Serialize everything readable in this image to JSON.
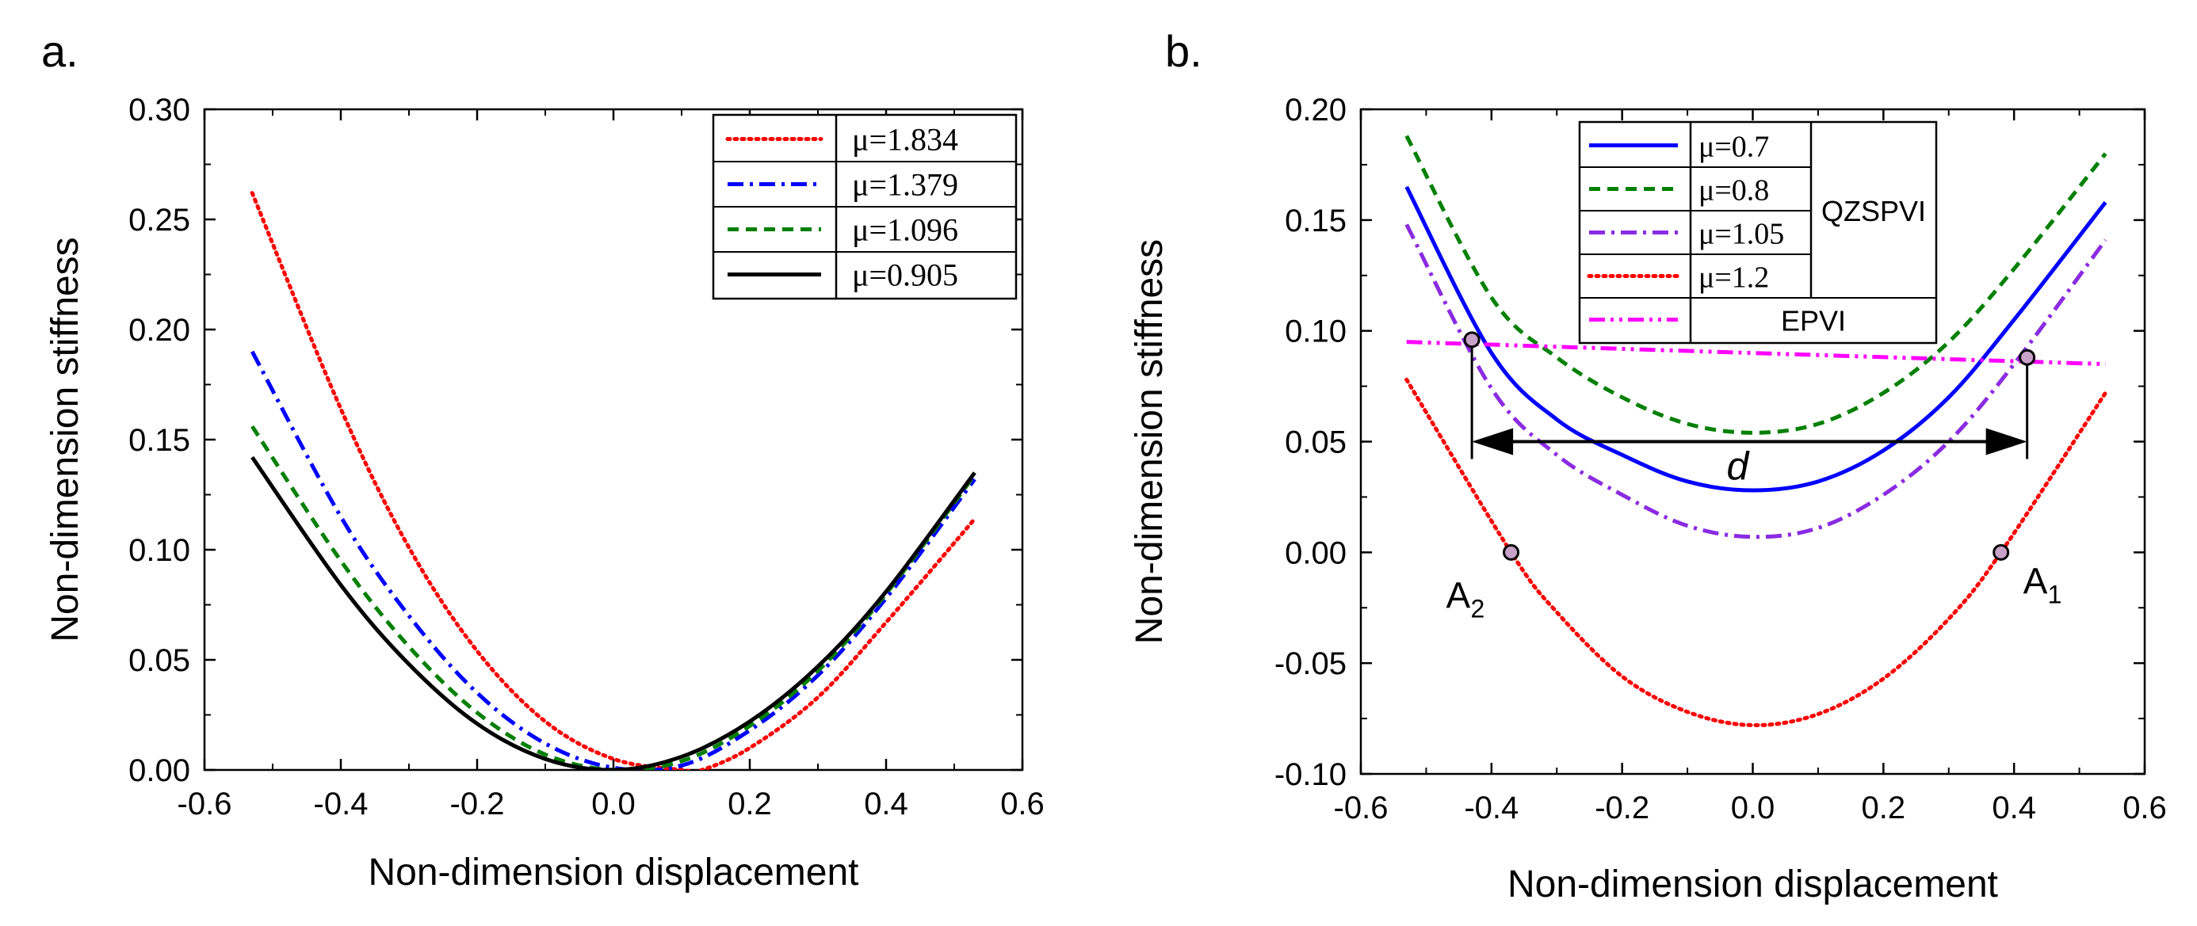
{
  "chart_data": [
    {
      "type": "line",
      "panel_label": "a.",
      "xlabel": "Non-dimension displacement",
      "ylabel": "Non-dimension stiffness",
      "xlim": [
        -0.6,
        0.6
      ],
      "ylim": [
        0.0,
        0.3
      ],
      "xticks": [
        "-0.6",
        "-0.4",
        "-0.2",
        "0.0",
        "0.2",
        "0.4",
        "0.6"
      ],
      "yticks": [
        "0.00",
        "0.05",
        "0.10",
        "0.15",
        "0.20",
        "0.25",
        "0.30"
      ],
      "grid": false,
      "legend_position": "top-right",
      "series": [
        {
          "name": "μ=1.834",
          "color": "#ff0000",
          "dash": "dotted",
          "x": [
            -0.53,
            -0.4,
            -0.3,
            -0.2,
            -0.1,
            0.0,
            0.1,
            0.13,
            0.2,
            0.3,
            0.4,
            0.53
          ],
          "y": [
            0.262,
            0.164,
            0.101,
            0.054,
            0.022,
            0.005,
            0.0,
            0.0,
            0.01,
            0.033,
            0.067,
            0.114
          ]
        },
        {
          "name": "μ=1.379",
          "color": "#0000ff",
          "dash": "dash-dot",
          "x": [
            -0.53,
            -0.4,
            -0.3,
            -0.2,
            -0.1,
            0.0,
            0.1,
            0.2,
            0.3,
            0.4,
            0.53
          ],
          "y": [
            0.19,
            0.115,
            0.07,
            0.035,
            0.012,
            0.001,
            0.002,
            0.018,
            0.043,
            0.078,
            0.132
          ]
        },
        {
          "name": "μ=1.096",
          "color": "#008000",
          "dash": "dashed",
          "x": [
            -0.53,
            -0.4,
            -0.3,
            -0.2,
            -0.1,
            0.0,
            0.1,
            0.2,
            0.3,
            0.4,
            0.53
          ],
          "y": [
            0.156,
            0.095,
            0.056,
            0.026,
            0.007,
            0.0,
            0.004,
            0.02,
            0.045,
            0.08,
            0.134
          ]
        },
        {
          "name": "μ=0.905",
          "color": "#000000",
          "dash": "solid",
          "x": [
            -0.53,
            -0.4,
            -0.3,
            -0.2,
            -0.1,
            0.0,
            0.1,
            0.2,
            0.3,
            0.4,
            0.53
          ],
          "y": [
            0.142,
            0.084,
            0.048,
            0.021,
            0.005,
            0.0,
            0.006,
            0.022,
            0.047,
            0.081,
            0.135
          ]
        }
      ]
    },
    {
      "type": "line",
      "panel_label": "b.",
      "xlabel": "Non-dimension displacement",
      "ylabel": "Non-dimension stiffness",
      "xlim": [
        -0.6,
        0.6
      ],
      "ylim": [
        -0.1,
        0.2
      ],
      "xticks": [
        "-0.6",
        "-0.4",
        "-0.2",
        "0.0",
        "0.2",
        "0.4",
        "0.6"
      ],
      "yticks": [
        "-0.10",
        "-0.05",
        "0.00",
        "0.05",
        "0.10",
        "0.15",
        "0.20"
      ],
      "grid": false,
      "legend_position": "top-center",
      "legend_groups": [
        "QZSPVI",
        "EPVI"
      ],
      "series": [
        {
          "name": "μ=0.7",
          "color": "#0000ff",
          "dash": "solid",
          "x": [
            -0.53,
            -0.4,
            -0.3,
            -0.2,
            -0.1,
            0.0,
            0.1,
            0.2,
            0.3,
            0.4,
            0.54
          ],
          "y": [
            0.165,
            0.09,
            0.06,
            0.044,
            0.032,
            0.028,
            0.032,
            0.046,
            0.07,
            0.105,
            0.158
          ]
        },
        {
          "name": "μ=0.8",
          "color": "#008000",
          "dash": "dashed",
          "x": [
            -0.53,
            -0.4,
            -0.3,
            -0.2,
            -0.1,
            0.0,
            0.1,
            0.2,
            0.3,
            0.4,
            0.54
          ],
          "y": [
            0.188,
            0.115,
            0.088,
            0.07,
            0.058,
            0.054,
            0.058,
            0.072,
            0.095,
            0.128,
            0.18
          ]
        },
        {
          "name": "μ=1.05",
          "color": "#8a2be2",
          "dash": "dash-dot",
          "x": [
            -0.53,
            -0.4,
            -0.3,
            -0.2,
            -0.1,
            0.0,
            0.1,
            0.2,
            0.3,
            0.4,
            0.54
          ],
          "y": [
            0.148,
            0.074,
            0.044,
            0.026,
            0.012,
            0.007,
            0.011,
            0.026,
            0.05,
            0.085,
            0.141
          ]
        },
        {
          "name": "μ=1.2",
          "color": "#ff0000",
          "dash": "dotted",
          "x": [
            -0.53,
            -0.37,
            -0.3,
            -0.2,
            -0.1,
            0.0,
            0.1,
            0.2,
            0.3,
            0.38,
            0.54
          ],
          "y": [
            0.078,
            0.0,
            -0.027,
            -0.056,
            -0.072,
            -0.078,
            -0.073,
            -0.057,
            -0.03,
            0.0,
            0.072
          ]
        },
        {
          "name": "EPVI",
          "color": "#ff00ff",
          "dash": "dash-dot-dot",
          "x": [
            -0.53,
            0.0,
            0.54
          ],
          "y": [
            0.095,
            0.09,
            0.085
          ]
        }
      ],
      "markers": [
        {
          "x": -0.43,
          "y": 0.096
        },
        {
          "x": 0.42,
          "y": 0.088
        },
        {
          "x": -0.37,
          "y": 0.0
        },
        {
          "x": 0.38,
          "y": 0.0
        }
      ],
      "annotations": {
        "d_label": "d",
        "d_from": -0.43,
        "d_to": 0.42,
        "d_y": 0.05,
        "A1_main": "A",
        "A1_sub": "1",
        "A2_main": "A",
        "A2_sub": "2"
      }
    }
  ]
}
